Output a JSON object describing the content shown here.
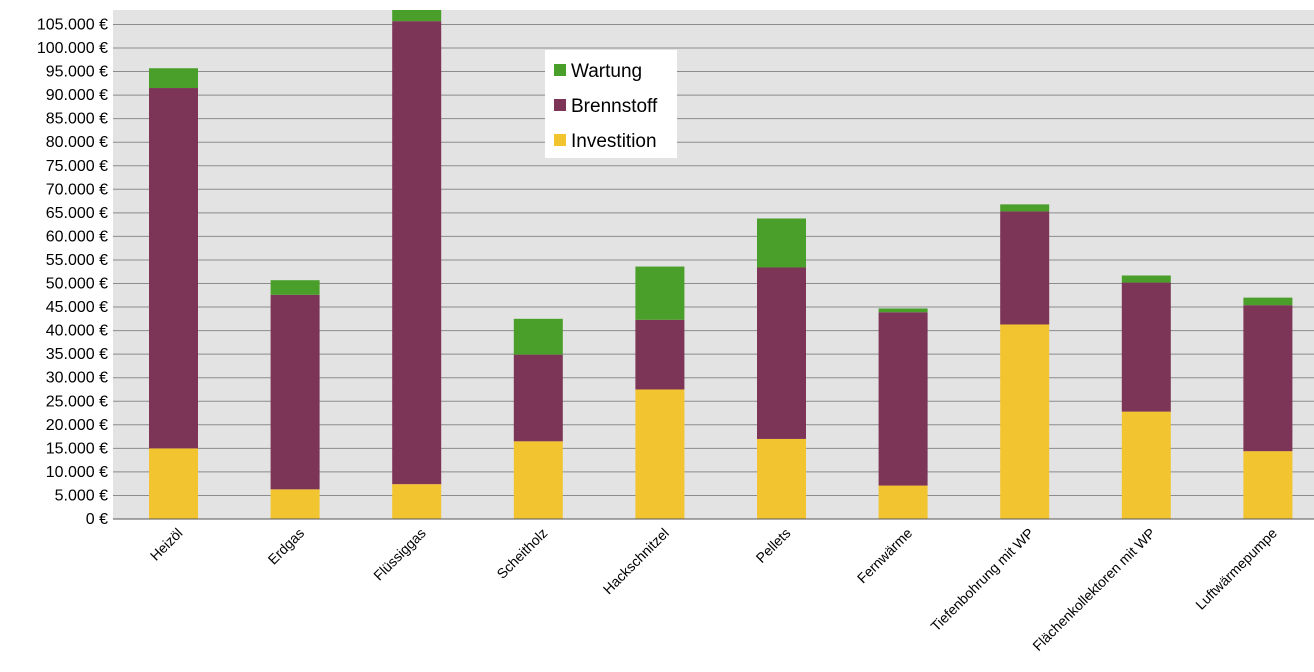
{
  "chart_data": {
    "type": "bar",
    "stacked": true,
    "categories": [
      "Heizöl",
      "Erdgas",
      "Flüssiggas",
      "Scheitholz",
      "Hackschnitzel",
      "Pellets",
      "Fernwärme",
      "Tiefenbohrung mit WP",
      "Flächenkollektoren mit WP",
      "Luftwärmepumpe"
    ],
    "series": [
      {
        "name": "Investition",
        "color": "#f2c430",
        "values": [
          15000,
          6300,
          7400,
          16500,
          27500,
          17000,
          7100,
          41300,
          22800,
          14400
        ]
      },
      {
        "name": "Brennstoff",
        "color": "#7d3557",
        "values": [
          76500,
          41300,
          98300,
          18400,
          14800,
          36400,
          36800,
          24000,
          27400,
          31000
        ]
      },
      {
        "name": "Wartung",
        "color": "#4a9f2a",
        "values": [
          4200,
          3100,
          2900,
          7600,
          11300,
          10400,
          800,
          1500,
          1500,
          1600
        ]
      }
    ],
    "ylim": [
      0,
      108000
    ],
    "ytick_step": 5000,
    "yticks": [
      "0 €",
      "5.000 €",
      "10.000 €",
      "15.000 €",
      "20.000 €",
      "25.000 €",
      "30.000 €",
      "35.000 €",
      "40.000 €",
      "45.000 €",
      "50.000 €",
      "55.000 €",
      "60.000 €",
      "65.000 €",
      "70.000 €",
      "75.000 €",
      "80.000 €",
      "85.000 €",
      "90.000 €",
      "95.000 €",
      "100.000 €",
      "105.000 €"
    ],
    "legend": {
      "placement": "top-center",
      "order": [
        "Wartung",
        "Brennstoff",
        "Investition"
      ]
    },
    "grid": true,
    "plot_background": "#e3e3e3",
    "grid_color": "#8c8c8c"
  }
}
